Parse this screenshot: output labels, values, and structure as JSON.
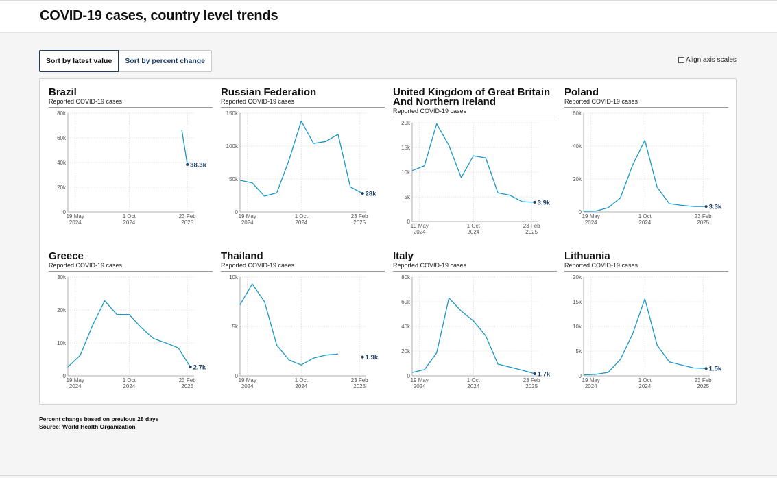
{
  "page": {
    "title": "COVID-19 cases, country level trends",
    "sort_buttons": [
      "Sort by latest value",
      "Sort by percent change"
    ],
    "align_label": "Align axis scales",
    "footer_note": "Percent change based on previous 28 days",
    "footer_source": "Source: World Health Organization"
  },
  "colors": {
    "line": "#1a96c4",
    "label": "#1d3d63",
    "grid": "#dcdcdc"
  },
  "chart_data": [
    {
      "type": "line",
      "title": "Brazil",
      "subtitle": "Reported COVID-19 cases",
      "ylim": [
        0,
        80000
      ],
      "yticks": [
        0,
        20000,
        40000,
        60000,
        80000
      ],
      "ytick_labels": [
        "0",
        "20k",
        "40k",
        "60k",
        "80k"
      ],
      "x_ticks": [
        {
          "line1": "19 May",
          "line2": "2024",
          "month": 0.6
        },
        {
          "line1": "1 Oct",
          "line2": "2024",
          "month": 5.0
        },
        {
          "line1": "23 Feb",
          "line2": "2025",
          "month": 9.75
        }
      ],
      "x": [
        9.3,
        9.75
      ],
      "values": [
        66500,
        38300
      ],
      "latest_label": "38.3k"
    },
    {
      "type": "line",
      "title": "Russian Federation",
      "subtitle": "Reported COVID-19 cases",
      "ylim": [
        0,
        150000
      ],
      "yticks": [
        0,
        50000,
        100000,
        150000
      ],
      "ytick_labels": [
        "0",
        "50k",
        "100k",
        "150k"
      ],
      "x_ticks": [
        {
          "line1": "19 May",
          "line2": "2024",
          "month": 0.6
        },
        {
          "line1": "1 Oct",
          "line2": "2024",
          "month": 5.0
        },
        {
          "line1": "23 Feb",
          "line2": "2025",
          "month": 9.75
        }
      ],
      "x": [
        0,
        1,
        2,
        3,
        4,
        5,
        6,
        7,
        8,
        9,
        10
      ],
      "values": [
        48000,
        44000,
        24000,
        29000,
        79000,
        138000,
        104000,
        107000,
        118000,
        38000,
        28000
      ],
      "latest_label": "28k"
    },
    {
      "type": "line",
      "title": "United Kingdom of Great Britain And Northern Ireland",
      "subtitle": "Reported COVID-19 cases",
      "ylim": [
        0,
        20000
      ],
      "yticks": [
        0,
        5000,
        10000,
        15000,
        20000
      ],
      "ytick_labels": [
        "0",
        "5k",
        "10k",
        "15k",
        "20k"
      ],
      "x_ticks": [
        {
          "line1": "19 May",
          "line2": "2024",
          "month": 0.6
        },
        {
          "line1": "1 Oct",
          "line2": "2024",
          "month": 5.0
        },
        {
          "line1": "23 Feb",
          "line2": "2025",
          "month": 9.75
        }
      ],
      "x": [
        0,
        1,
        2,
        3,
        4,
        5,
        6,
        7,
        8,
        9,
        10
      ],
      "values": [
        10300,
        11300,
        19800,
        15400,
        8900,
        13300,
        12900,
        5800,
        5300,
        4000,
        3900
      ],
      "latest_label": "3.9k"
    },
    {
      "type": "line",
      "title": "Poland",
      "subtitle": "Reported COVID-19 cases",
      "ylim": [
        0,
        60000
      ],
      "yticks": [
        0,
        20000,
        40000,
        60000
      ],
      "ytick_labels": [
        "0",
        "20k",
        "40k",
        "60k"
      ],
      "x_ticks": [
        {
          "line1": "19 May",
          "line2": "2024",
          "month": 0.6
        },
        {
          "line1": "1 Oct",
          "line2": "2024",
          "month": 5.0
        },
        {
          "line1": "23 Feb",
          "line2": "2025",
          "month": 9.75
        }
      ],
      "x": [
        0,
        1,
        2,
        3,
        4,
        5,
        6,
        7,
        8,
        9,
        10
      ],
      "values": [
        500,
        600,
        2500,
        8500,
        28500,
        43500,
        15000,
        5000,
        4000,
        3300,
        3300
      ],
      "latest_label": "3.3k"
    },
    {
      "type": "line",
      "title": "Greece",
      "subtitle": "Reported COVID-19 cases",
      "ylim": [
        0,
        30000
      ],
      "yticks": [
        0,
        10000,
        20000,
        30000
      ],
      "ytick_labels": [
        "0",
        "10k",
        "20k",
        "30k"
      ],
      "x_ticks": [
        {
          "line1": "19 May",
          "line2": "2024",
          "month": 0.6
        },
        {
          "line1": "1 Oct",
          "line2": "2024",
          "month": 5.0
        },
        {
          "line1": "23 Feb",
          "line2": "2025",
          "month": 9.75
        }
      ],
      "x": [
        0,
        1,
        2,
        3,
        4,
        5,
        6,
        7,
        8,
        9,
        10
      ],
      "values": [
        2700,
        6200,
        15200,
        22800,
        18600,
        18600,
        14600,
        11300,
        10000,
        8500,
        2700
      ],
      "latest_label": "2.7k"
    },
    {
      "type": "line",
      "title": "Thailand",
      "subtitle": "Reported COVID-19 cases",
      "ylim": [
        0,
        10000
      ],
      "yticks": [
        0,
        5000,
        10000
      ],
      "ytick_labels": [
        "0",
        "5k",
        "10k"
      ],
      "x_ticks": [
        {
          "line1": "19 May",
          "line2": "2024",
          "month": 0.6
        },
        {
          "line1": "1 Oct",
          "line2": "2024",
          "month": 5.0
        },
        {
          "line1": "23 Feb",
          "line2": "2025",
          "month": 9.75
        }
      ],
      "x": [
        0,
        1,
        2,
        3,
        4,
        5,
        6,
        7,
        8
      ],
      "values": [
        7200,
        9300,
        7500,
        3100,
        1600,
        1100,
        1800,
        2100,
        2200
      ],
      "latest_point": {
        "x": 10,
        "y": 1900
      },
      "latest_label": "1.9k"
    },
    {
      "type": "line",
      "title": "Italy",
      "subtitle": "Reported COVID-19 cases",
      "ylim": [
        0,
        80000
      ],
      "yticks": [
        0,
        20000,
        40000,
        60000,
        80000
      ],
      "ytick_labels": [
        "0",
        "20k",
        "40k",
        "60k",
        "80k"
      ],
      "x_ticks": [
        {
          "line1": "19 May",
          "line2": "2024",
          "month": 0.6
        },
        {
          "line1": "1 Oct",
          "line2": "2024",
          "month": 5.0
        },
        {
          "line1": "23 Feb",
          "line2": "2025",
          "month": 9.75
        }
      ],
      "x": [
        0,
        1,
        2,
        3,
        4,
        5,
        6,
        7,
        8,
        9,
        10
      ],
      "values": [
        2700,
        5000,
        18500,
        63000,
        52500,
        44500,
        32500,
        9500,
        7000,
        4500,
        1700
      ],
      "latest_label": "1.7k"
    },
    {
      "type": "line",
      "title": "Lithuania",
      "subtitle": "Reported COVID-19 cases",
      "ylim": [
        0,
        20000
      ],
      "yticks": [
        0,
        5000,
        10000,
        15000,
        20000
      ],
      "ytick_labels": [
        "0",
        "5k",
        "10k",
        "15k",
        "20k"
      ],
      "x_ticks": [
        {
          "line1": "19 May",
          "line2": "2024",
          "month": 0.6
        },
        {
          "line1": "1 Oct",
          "line2": "2024",
          "month": 5.0
        },
        {
          "line1": "23 Feb",
          "line2": "2025",
          "month": 9.75
        }
      ],
      "x": [
        0,
        1,
        2,
        3,
        4,
        5,
        6,
        7,
        8,
        9,
        10
      ],
      "values": [
        200,
        300,
        700,
        3300,
        8500,
        15600,
        6200,
        2800,
        2200,
        1600,
        1500
      ],
      "latest_label": "1.5k"
    }
  ]
}
